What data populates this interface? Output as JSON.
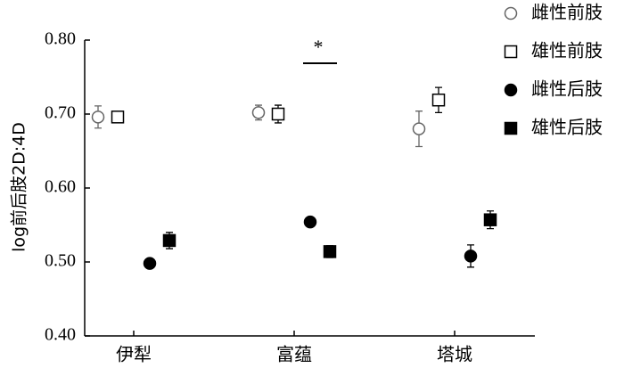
{
  "chart_data": {
    "type": "dot",
    "ylabel": "log前后肢2D:4D",
    "categories": [
      "伊犁",
      "富蕴",
      "塔城"
    ],
    "ylim": [
      0.4,
      0.8
    ],
    "yticks": [
      {
        "value": 0.4,
        "label": "0.40"
      },
      {
        "value": 0.5,
        "label": "0.50"
      },
      {
        "value": 0.6,
        "label": "0.60"
      },
      {
        "value": 0.7,
        "label": "0.70"
      },
      {
        "value": 0.8,
        "label": "0.80"
      }
    ],
    "series": [
      {
        "name": "雌性前肢",
        "marker": "circle",
        "filled": false,
        "color": "#666666",
        "values": [
          0.696,
          0.702,
          0.68
        ],
        "errors": [
          0.015,
          0.01,
          0.024
        ]
      },
      {
        "name": "雄性前肢",
        "marker": "square",
        "filled": false,
        "color": "#000000",
        "values": [
          0.696,
          0.7,
          0.719
        ],
        "errors": [
          0.006,
          0.012,
          0.017
        ]
      },
      {
        "name": "雌性后肢",
        "marker": "circle",
        "filled": true,
        "color": "#000000",
        "values": [
          0.498,
          0.554,
          0.508
        ],
        "errors": [
          0.004,
          0.004,
          0.015
        ]
      },
      {
        "name": "雄性后肢",
        "marker": "square",
        "filled": true,
        "color": "#000000",
        "values": [
          0.529,
          0.514,
          0.557
        ],
        "errors": [
          0.011,
          0.008,
          0.012
        ]
      }
    ],
    "annotation": "*"
  }
}
